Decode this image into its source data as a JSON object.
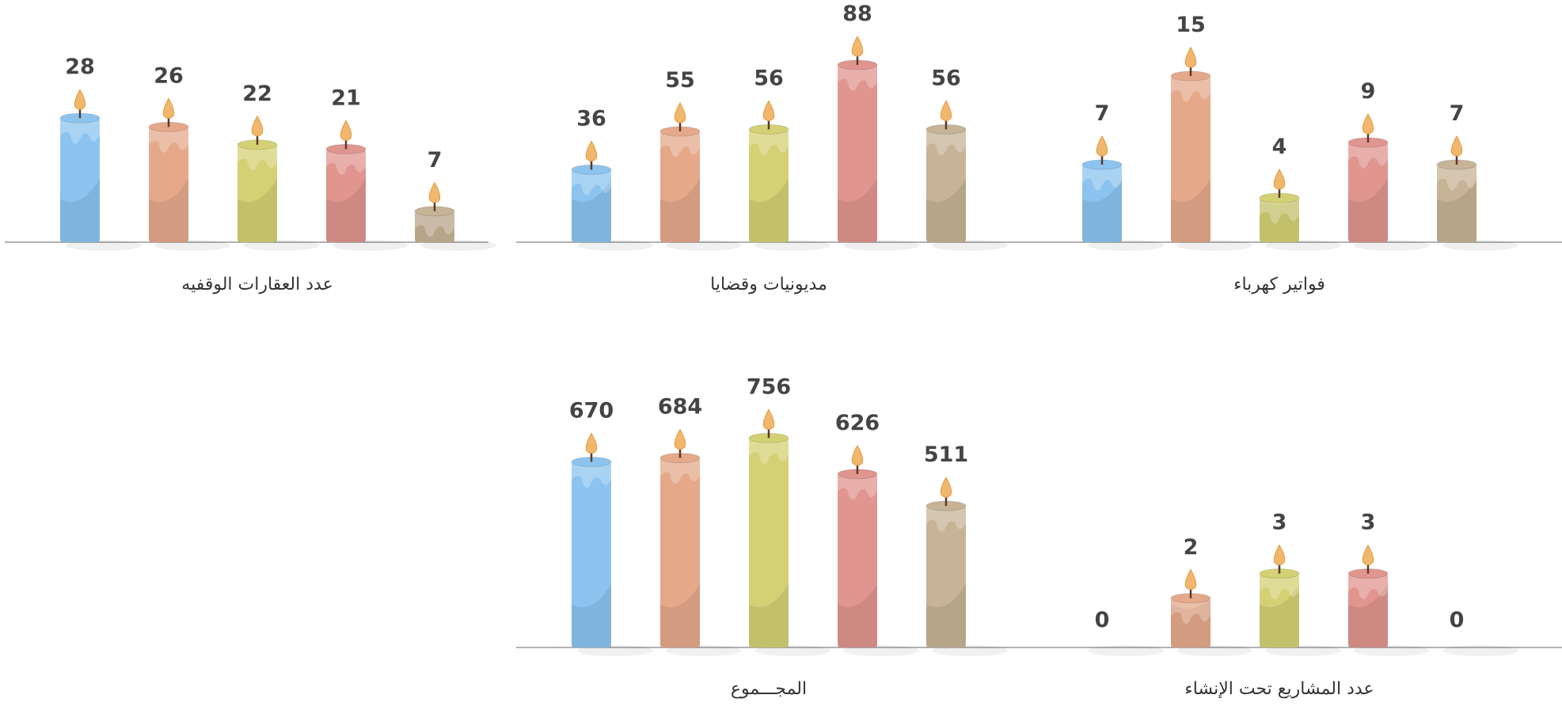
{
  "chart_data": [
    {
      "type": "bar",
      "title": "فواتير كهرباء",
      "values": [
        7,
        15,
        4,
        9,
        7
      ],
      "colors": [
        "#8cc4ef",
        "#e5a98a",
        "#d4d175",
        "#e0958f",
        "#c7b396"
      ],
      "ylim": [
        0,
        20
      ]
    },
    {
      "type": "bar",
      "title": "مديونيات وقضايا",
      "values": [
        36,
        55,
        56,
        88,
        56
      ],
      "colors": [
        "#8cc4ef",
        "#e5a98a",
        "#d4d175",
        "#e0958f",
        "#c7b396"
      ],
      "ylim": [
        0,
        110
      ]
    },
    {
      "type": "bar",
      "title": "عدد العقارات الوقفيه",
      "values": [
        28,
        26,
        22,
        21,
        7
      ],
      "colors": [
        "#8cc4ef",
        "#e5a98a",
        "#d4d175",
        "#e0958f",
        "#c7b396"
      ],
      "ylim": [
        0,
        50
      ]
    },
    {
      "type": "bar",
      "title": "عدد المشاريع تحت الإنشاء",
      "values": [
        0,
        2,
        3,
        3,
        0
      ],
      "colors": [
        "#8cc4ef",
        "#e5a98a",
        "#d4d175",
        "#e0958f",
        "#c7b396"
      ],
      "ylim": [
        0,
        9
      ]
    },
    {
      "type": "bar",
      "title": "المجـــموع",
      "values": [
        670,
        684,
        756,
        626,
        511
      ],
      "colors": [
        "#8cc4ef",
        "#e5a98a",
        "#d4d175",
        "#e0958f",
        "#c7b396"
      ],
      "ylim": [
        0,
        800
      ]
    }
  ]
}
